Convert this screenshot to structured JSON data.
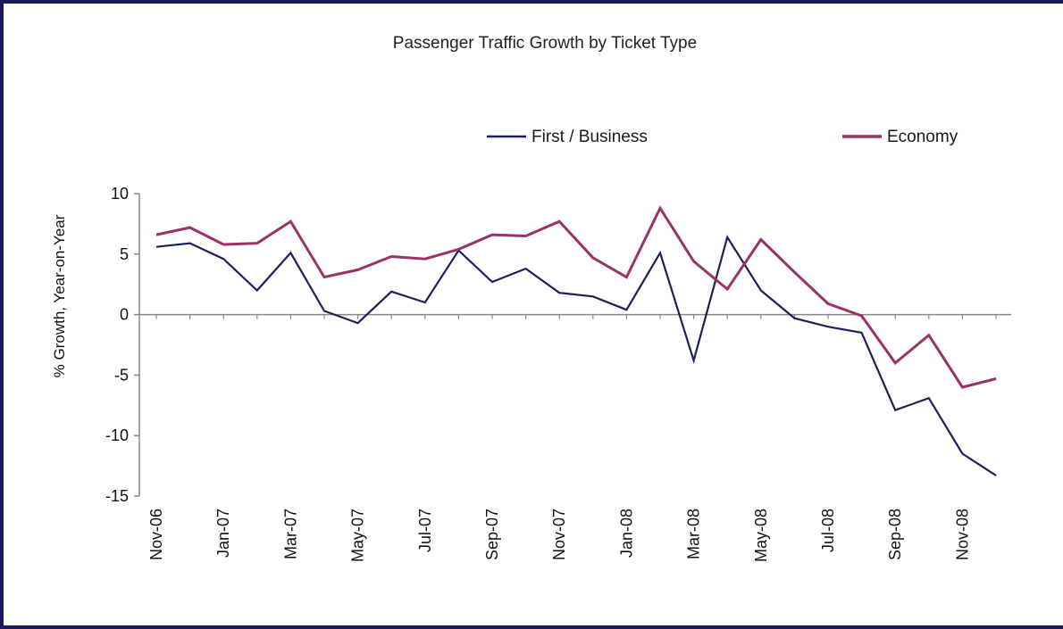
{
  "chart_data": {
    "type": "line",
    "title": "Passenger Traffic Growth by Ticket Type",
    "xlabel": "",
    "ylabel": "% Growth, Year-on-Year",
    "ylim": [
      -15,
      10
    ],
    "y_ticks": [
      "10",
      "5",
      "0",
      "-5",
      "-10",
      "-15"
    ],
    "x": [
      "Nov-06",
      "Dec-06",
      "Jan-07",
      "Feb-07",
      "Mar-07",
      "Apr-07",
      "May-07",
      "Jun-07",
      "Jul-07",
      "Aug-07",
      "Sep-07",
      "Oct-07",
      "Nov-07",
      "Dec-07",
      "Jan-08",
      "Feb-08",
      "Mar-08",
      "Apr-08",
      "May-08",
      "Jun-08",
      "Jul-08",
      "Aug-08",
      "Sep-08",
      "Oct-08",
      "Nov-08",
      "Dec-08"
    ],
    "x_tick_labels": [
      "Nov-06",
      "Jan-07",
      "Mar-07",
      "May-07",
      "Jul-07",
      "Sep-07",
      "Nov-07",
      "Jan-08",
      "Mar-08",
      "May-08",
      "Jul-08",
      "Sep-08",
      "Nov-08"
    ],
    "legend_position": "top-right",
    "grid": false,
    "series": [
      {
        "name": "First / Business",
        "color": "#1f1f5c",
        "values": [
          5.6,
          5.9,
          4.6,
          2.0,
          5.1,
          0.3,
          -0.7,
          1.9,
          1.0,
          5.3,
          2.7,
          3.8,
          1.8,
          1.5,
          0.4,
          5.1,
          -3.8,
          6.4,
          2.0,
          -0.3,
          -1.0,
          -1.5,
          -7.9,
          -6.9,
          -11.5,
          -13.3
        ]
      },
      {
        "name": "Economy",
        "color": "#993366",
        "values": [
          6.6,
          7.2,
          5.8,
          5.9,
          7.7,
          3.1,
          3.7,
          4.8,
          4.6,
          5.4,
          6.6,
          6.5,
          7.7,
          4.7,
          3.1,
          8.8,
          4.4,
          2.1,
          6.2,
          3.5,
          0.9,
          -0.1,
          -4.0,
          -1.7,
          -6.0,
          -5.3
        ]
      }
    ]
  }
}
